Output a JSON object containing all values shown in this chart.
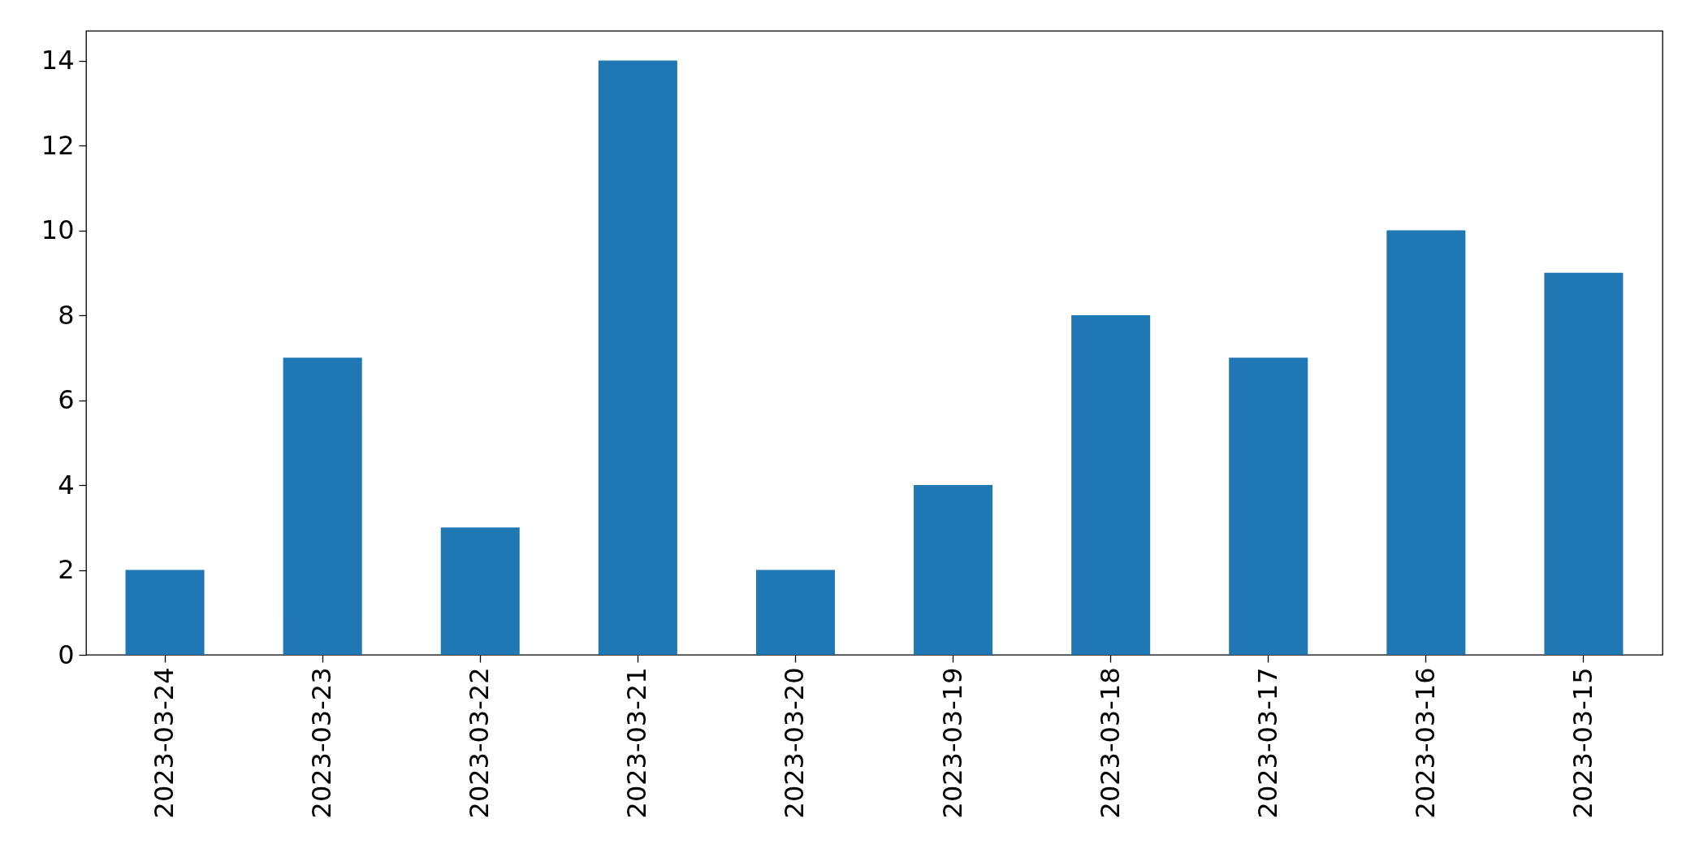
{
  "chart_data": {
    "type": "bar",
    "categories": [
      "2023-03-24",
      "2023-03-23",
      "2023-03-22",
      "2023-03-21",
      "2023-03-20",
      "2023-03-19",
      "2023-03-18",
      "2023-03-17",
      "2023-03-16",
      "2023-03-15"
    ],
    "values": [
      2,
      7,
      3,
      14,
      2,
      4,
      8,
      7,
      10,
      9
    ],
    "color": "#1f77b4",
    "ylim": [
      0,
      14.7
    ],
    "yticks": [
      0,
      2,
      4,
      6,
      8,
      10,
      12,
      14
    ],
    "grid": false
  }
}
